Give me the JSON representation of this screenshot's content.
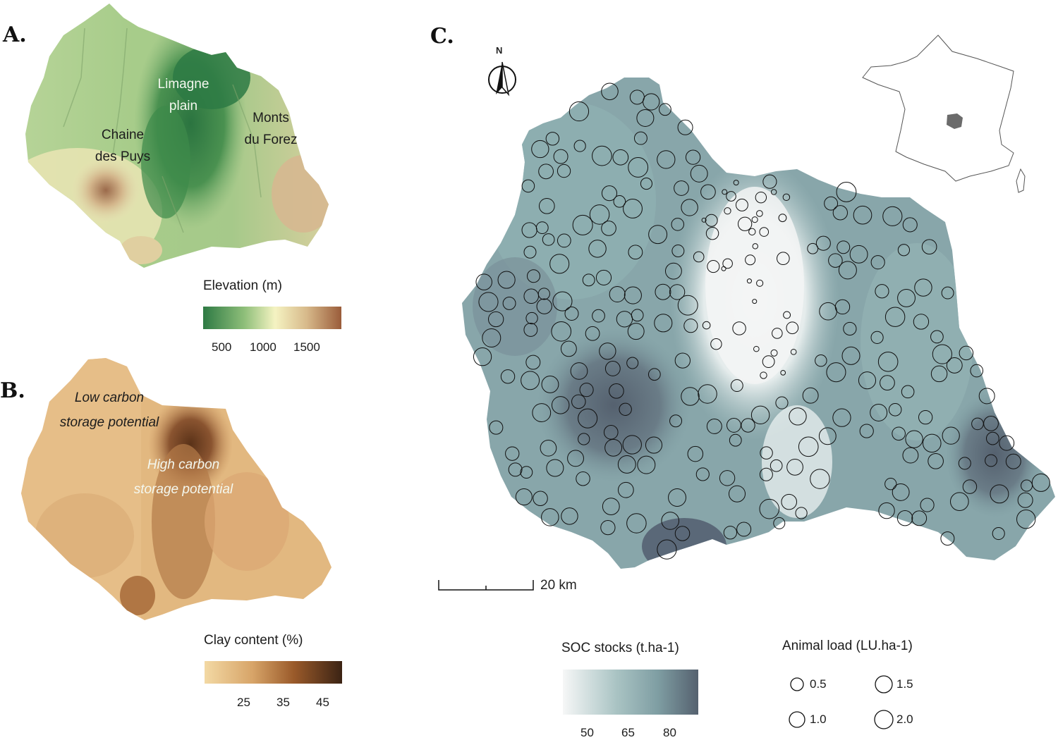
{
  "panels": {
    "a": {
      "letter": "A.",
      "labels": {
        "limagne": "Limagne\nplain",
        "puys": "Chaine\ndes Puys",
        "forez": "Monts\ndu Forez"
      },
      "legend": {
        "title": "Elevation (m)",
        "ticks": [
          "500",
          "1000",
          "1500"
        ],
        "colors": [
          "#2e7a44",
          "#8fbf7a",
          "#f5f3c2",
          "#d7b98a",
          "#9a5c3a"
        ]
      }
    },
    "b": {
      "letter": "B.",
      "labels": {
        "low": "Low carbon\nstorage potential",
        "high": "High carbon\nstorage potential"
      },
      "legend": {
        "title": "Clay content (%)",
        "ticks": [
          "25",
          "35",
          "45"
        ],
        "colors": [
          "#f3d9a4",
          "#c98d55",
          "#7a4320",
          "#3b2314"
        ]
      }
    },
    "c": {
      "letter": "C.",
      "north_label": "N",
      "scale_label": "20 km",
      "soc_legend": {
        "title": "SOC stocks (t.ha-1)",
        "ticks": [
          "50",
          "65",
          "80"
        ],
        "colors": [
          "#f6f7f7",
          "#a9c3c3",
          "#7f9ea3",
          "#55616f"
        ]
      },
      "animal_legend": {
        "title": "Animal load (LU.ha-1)",
        "items": [
          {
            "label": "0.5",
            "value": 0.5
          },
          {
            "label": "1.5",
            "value": 1.5
          },
          {
            "label": "1.0",
            "value": 1.0
          },
          {
            "label": "2.0",
            "value": 2.0
          }
        ]
      },
      "inset_highlight_color": "#6b6b6b"
    }
  }
}
